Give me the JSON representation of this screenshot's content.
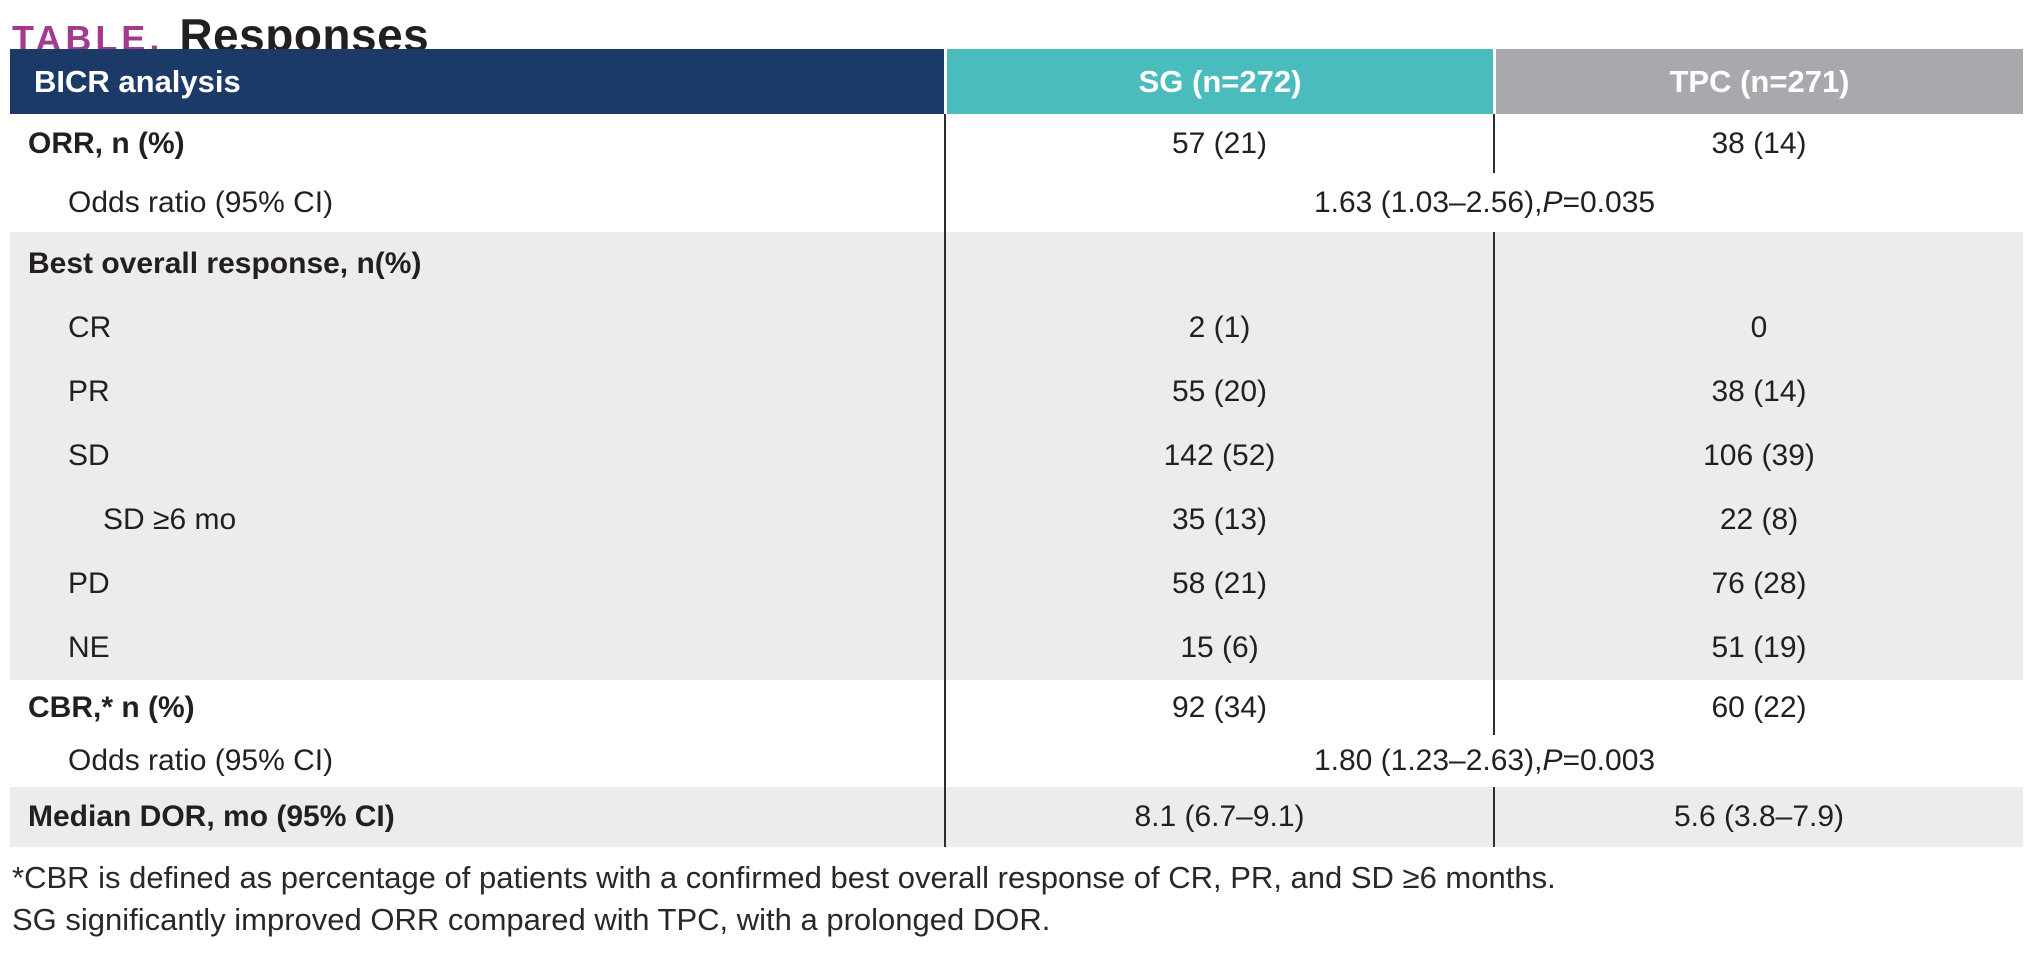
{
  "title": {
    "kicker": "TABLE.",
    "text": "Responses"
  },
  "colors": {
    "header_navy": "#1b3a67",
    "header_teal": "#4bbcbd",
    "header_gray": "#a7a9ac",
    "row_gray": "#ececec",
    "kicker_magenta": "#a43a8e",
    "text": "#231f20",
    "divider": "#2e2e2e"
  },
  "table": {
    "columns": [
      {
        "label": "BICR analysis"
      },
      {
        "label": "SG (n=272)"
      },
      {
        "label": "TPC (n=271)"
      }
    ],
    "rows": [
      {
        "label": "ORR, n (%)",
        "sg": "57 (21)",
        "tpc": "38 (14)"
      },
      {
        "label": "Odds ratio (95% CI)",
        "value": "1.63 (1.03–2.56), ",
        "p_italic": "P",
        "p_rest": "=0.035"
      },
      {
        "label": "Best overall response, n(%)",
        "sg": "",
        "tpc": ""
      },
      {
        "label": "CR",
        "sg": "2 (1)",
        "tpc": "0"
      },
      {
        "label": "PR",
        "sg": "55 (20)",
        "tpc": "38 (14)"
      },
      {
        "label": "SD",
        "sg": "142 (52)",
        "tpc": "106 (39)"
      },
      {
        "label": "SD ≥6 mo",
        "sg": "35 (13)",
        "tpc": "22 (8)"
      },
      {
        "label": "PD",
        "sg": "58 (21)",
        "tpc": "76 (28)"
      },
      {
        "label": "NE",
        "sg": "15 (6)",
        "tpc": "51 (19)"
      },
      {
        "label": "CBR,* n (%)",
        "sg": "92 (34)",
        "tpc": "60 (22)"
      },
      {
        "label": "Odds ratio (95% CI)",
        "value": "1.80 (1.23–2.63), ",
        "p_italic": "P",
        "p_rest": "=0.003"
      },
      {
        "label": "Median DOR, mo (95% CI)",
        "sg": "8.1 (6.7–9.1)",
        "tpc": "5.6 (3.8–7.9)"
      }
    ]
  },
  "footnotes": [
    "*CBR is defined as percentage of patients with a confirmed best overall response of CR, PR, and SD ≥6 months.",
    "SG significantly improved ORR compared with TPC, with a prolonged DOR."
  ],
  "chart_data": {
    "type": "table",
    "title": "TABLE. Responses",
    "columns": [
      "BICR analysis",
      "SG (n=272)",
      "TPC (n=271)"
    ],
    "rows": [
      [
        "ORR, n (%)",
        "57 (21)",
        "38 (14)"
      ],
      [
        "Odds ratio (95% CI)",
        "1.63 (1.03–2.56), P=0.035",
        ""
      ],
      [
        "Best overall response, n(%)",
        "",
        ""
      ],
      [
        "CR",
        "2 (1)",
        "0"
      ],
      [
        "PR",
        "55 (20)",
        "38 (14)"
      ],
      [
        "SD",
        "142 (52)",
        "106 (39)"
      ],
      [
        "SD ≥6 mo",
        "35 (13)",
        "22 (8)"
      ],
      [
        "PD",
        "58 (21)",
        "76 (28)"
      ],
      [
        "NE",
        "15 (6)",
        "51 (19)"
      ],
      [
        "CBR,* n (%)",
        "92 (34)",
        "60 (22)"
      ],
      [
        "Odds ratio (95% CI)",
        "1.80 (1.23–2.63), P=0.003",
        ""
      ],
      [
        "Median DOR, mo (95% CI)",
        "8.1 (6.7–9.1)",
        "5.6 (3.8–7.9)"
      ]
    ]
  }
}
